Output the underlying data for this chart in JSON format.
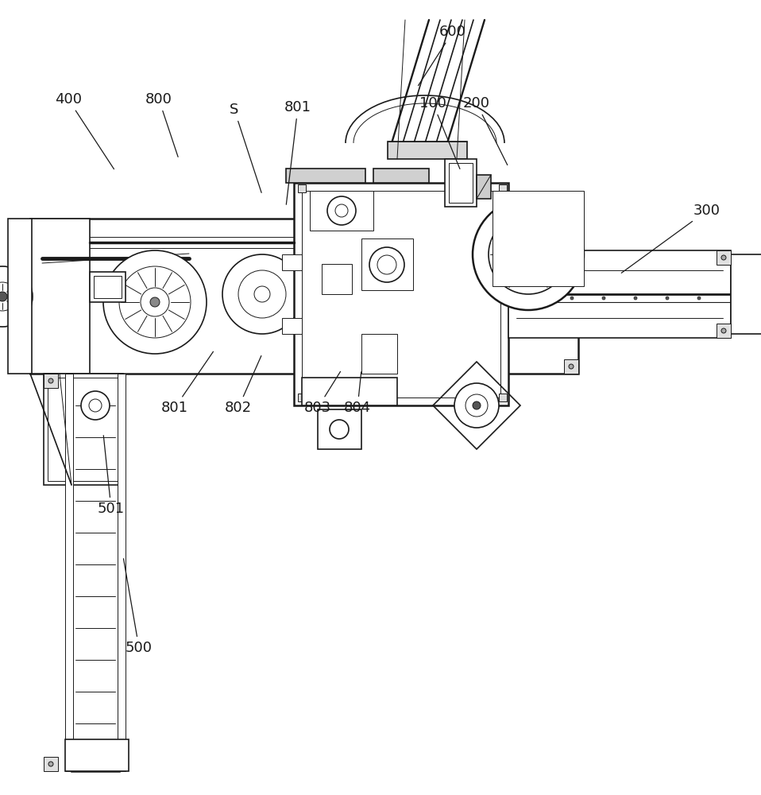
{
  "background_color": "#ffffff",
  "line_color": "#1a1a1a",
  "figsize": [
    9.58,
    10.0
  ],
  "dpi": 100,
  "annotations": [
    [
      "400",
      86,
      875,
      145,
      785
    ],
    [
      "800",
      200,
      875,
      225,
      800
    ],
    [
      "S",
      295,
      862,
      330,
      755
    ],
    [
      "801",
      375,
      865,
      360,
      740
    ],
    [
      "801",
      220,
      487,
      270,
      560
    ],
    [
      "802",
      300,
      487,
      330,
      555
    ],
    [
      "803",
      400,
      487,
      430,
      535
    ],
    [
      "804",
      450,
      487,
      455,
      535
    ],
    [
      "600",
      570,
      960,
      525,
      890
    ],
    [
      "100",
      545,
      870,
      580,
      785
    ],
    [
      "200",
      600,
      870,
      640,
      790
    ],
    [
      "300",
      890,
      735,
      780,
      655
    ],
    [
      "500",
      175,
      185,
      155,
      300
    ],
    [
      "501",
      140,
      360,
      130,
      455
    ]
  ]
}
